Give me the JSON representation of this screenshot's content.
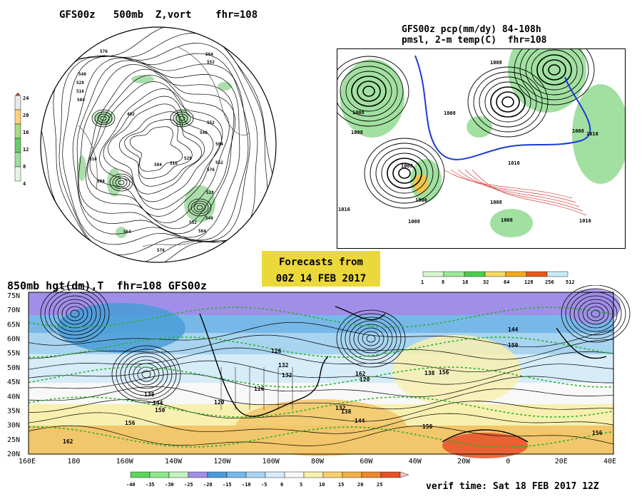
{
  "title_500mb": "GFS00z   500mb  Z,vort    fhr=108",
  "title_pcp_1": "GFS00z pcp(mm/dy) 84-108h",
  "title_pcp_2": "pmsl, 2-m temp(C)  fhr=108",
  "title_850mb": "850mb hgt(dm),T  fhr=108 GFS00z",
  "forecast_box": {
    "line1": "Forecasts from",
    "line2": "00Z 14 FEB 2017"
  },
  "verif_time": "verif time: Sat 18 FEB 2017 12Z",
  "chart_data": [
    {
      "type": "legend",
      "name": "500mb vorticity colorbar",
      "values": [
        "24",
        "20",
        "16",
        "12",
        "8",
        "4"
      ],
      "colors": [
        "#e8e8e8",
        "#ffd27a",
        "#a5dd80",
        "#66cc66",
        "#a0dca0",
        "#e6f5e6"
      ]
    },
    {
      "type": "legend",
      "name": "precipitation colorbar",
      "values": [
        "1",
        "8",
        "16",
        "32",
        "64",
        "128",
        "256",
        "512"
      ],
      "colors": [
        "#d8f5d0",
        "#9ce89c",
        "#4ccd4c",
        "#f2d865",
        "#f2a820",
        "#e85a1e",
        "#c8ecf5"
      ]
    },
    {
      "type": "legend",
      "name": "850mb temperature colorbar",
      "values": [
        "-40",
        "-35",
        "-30",
        "-25",
        "-20",
        "-15",
        "-10",
        "-5",
        "0",
        "5",
        "10",
        "15",
        "20",
        "25"
      ],
      "colors": [
        "#5cd65c",
        "#8ee88e",
        "#c2f2c2",
        "#a08ee8",
        "#4a9cd8",
        "#78b8e8",
        "#a8d4f0",
        "#d6ecf8",
        "#f8f8f8",
        "#f8f0b0",
        "#f5d070",
        "#f2b048",
        "#ec8830",
        "#e8502a"
      ]
    },
    {
      "type": "map",
      "name": "850mb height and temperature",
      "x_tick_labels": [
        "160E",
        "180",
        "160W",
        "140W",
        "120W",
        "100W",
        "80W",
        "60W",
        "40W",
        "20W",
        "0",
        "20E",
        "40E"
      ],
      "y_tick_labels": [
        "75N",
        "70N",
        "65N",
        "60N",
        "55N",
        "50N",
        "45N",
        "40N",
        "35N",
        "30N",
        "25N",
        "20N"
      ],
      "contour_labels": [
        "126",
        "132",
        "138",
        "144",
        "150",
        "156",
        "162",
        "120",
        "132",
        "138",
        "144",
        "150",
        "156",
        "162",
        "120",
        "132",
        "126",
        "138",
        "144",
        "150",
        "156"
      ]
    }
  ],
  "map500_labels": [
    "576",
    "564",
    "552",
    "540",
    "528",
    "516",
    "504",
    "492",
    "504",
    "516",
    "528",
    "540",
    "552",
    "564",
    "576",
    "576",
    "564",
    "552",
    "540",
    "528",
    "516",
    "504",
    "552",
    "564"
  ],
  "pcp_labels": [
    "1008",
    "1008",
    "1008",
    "1008",
    "1016",
    "1016",
    "1008",
    "1000",
    "1008",
    "1008",
    "1008",
    "1016",
    "1016",
    "1008"
  ]
}
